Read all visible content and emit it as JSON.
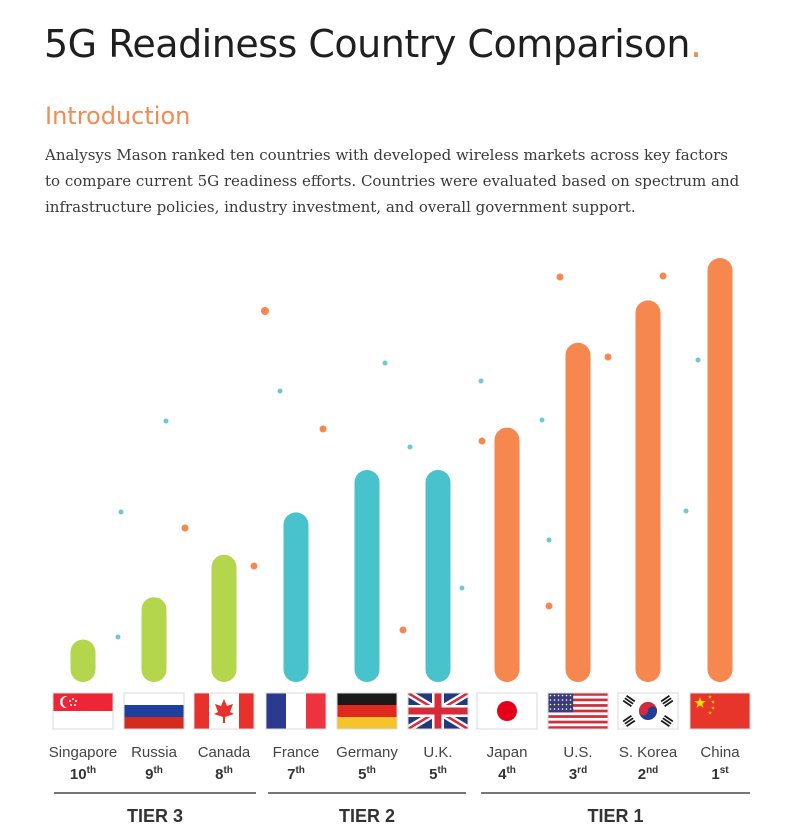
{
  "title": "5G Readiness Country Comparison",
  "title_dot": ".",
  "section_title": "Introduction",
  "intro_lines": [
    "Analysys Mason ranked ten countries with developed wireless markets across key factors",
    "to compare current 5G readiness efforts. Countries were evaluated based on spectrum and",
    "infrastructure policies, industry investment, and overall government support."
  ],
  "colors": {
    "tier3": "#b3d64c",
    "tier2": "#48c3cb",
    "tier1": "#f5874f",
    "dot_orange": "#f5874f",
    "dot_blue": "#6cc8d6",
    "tier_rule": "#777777"
  },
  "chart_data": {
    "type": "bar",
    "categories": [
      "Singapore",
      "Russia",
      "Canada",
      "France",
      "Germany",
      "U.K.",
      "Japan",
      "U.S.",
      "S. Korea",
      "China"
    ],
    "values": [
      1,
      2,
      3,
      4,
      5,
      5,
      6,
      8,
      9,
      10
    ],
    "value_scale_note": "",
    "ranks": [
      {
        "num": "10",
        "suffix": "th"
      },
      {
        "num": "9",
        "suffix": "th"
      },
      {
        "num": "8",
        "suffix": "th"
      },
      {
        "num": "7",
        "suffix": "th"
      },
      {
        "num": "5",
        "suffix": "th"
      },
      {
        "num": "5",
        "suffix": "th"
      },
      {
        "num": "4",
        "suffix": "th"
      },
      {
        "num": "3",
        "suffix": "rd"
      },
      {
        "num": "2",
        "suffix": "nd"
      },
      {
        "num": "1",
        "suffix": "st"
      }
    ],
    "tier_of_category": [
      3,
      3,
      3,
      2,
      2,
      2,
      1,
      1,
      1,
      1
    ],
    "tiers": [
      {
        "label": "TIER 3",
        "tier": 3,
        "start": 0,
        "end": 2
      },
      {
        "label": "TIER 2",
        "tier": 2,
        "start": 3,
        "end": 5
      },
      {
        "label": "TIER 1",
        "tier": 1,
        "start": 6,
        "end": 9
      }
    ],
    "flags": [
      "singapore-flag",
      "russia-flag",
      "canada-flag",
      "france-flag",
      "germany-flag",
      "uk-flag",
      "japan-flag",
      "us-flag",
      "south-korea-flag",
      "china-flag"
    ],
    "xlabel": "",
    "ylabel": "",
    "grid": false,
    "legend": "none"
  }
}
